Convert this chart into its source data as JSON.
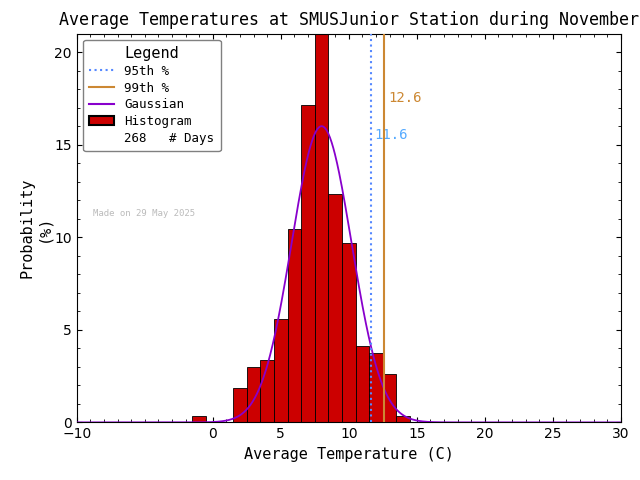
{
  "title": "Average Temperatures at SMUSJunior Station during November",
  "xlabel": "Average Temperature (C)",
  "ylabel_line1": "Probability",
  "ylabel_line2": "(%)",
  "xlim": [
    -10,
    30
  ],
  "ylim": [
    0,
    21
  ],
  "xticks": [
    -10,
    0,
    5,
    10,
    15,
    20,
    25,
    30
  ],
  "yticks": [
    0,
    5,
    10,
    15,
    20
  ],
  "bin_centers": [
    -1,
    0,
    1,
    2,
    3,
    4,
    5,
    6,
    7,
    8,
    9,
    10,
    11,
    12,
    13,
    14
  ],
  "bin_heights": [
    0.37,
    0.0,
    0.0,
    1.87,
    3.0,
    3.36,
    5.6,
    10.45,
    17.16,
    21.0,
    12.31,
    9.7,
    4.1,
    3.73,
    2.61,
    0.37
  ],
  "bar_color": "#cc0000",
  "bar_edge_color": "#000000",
  "gaussian_color": "#8800cc",
  "gaussian_mean": 8.0,
  "gaussian_std": 2.2,
  "gaussian_scale": 16.0,
  "percentile_95": 11.6,
  "percentile_99": 12.6,
  "percentile_95_color": "#5588ff",
  "percentile_95_label_color": "#55aaff",
  "percentile_99_color": "#cc8833",
  "n_days": 268,
  "made_on_text": "Made on 29 May 2025",
  "background_color": "#ffffff",
  "title_fontsize": 12,
  "axis_fontsize": 11,
  "tick_fontsize": 10,
  "legend_fontsize": 9
}
